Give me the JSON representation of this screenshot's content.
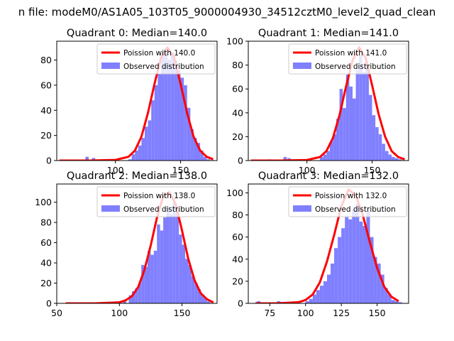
{
  "suptitle": "n file: modeM0/AS1A05_103T05_9000004930_34512cztM0_level2_quad_clean",
  "legend_labels": {
    "line": "Poission with",
    "hist": "Observed distribution"
  },
  "colors": {
    "hist": "#8080ff",
    "line": "#ff0000",
    "axes": "#000000"
  },
  "chart_data": [
    {
      "type": "bar",
      "title": "Quadrant 0: Median=140.0",
      "median": 140.0,
      "poisson_label": "Poission with 140.0",
      "xlim": [
        55,
        178
      ],
      "ylim": [
        0,
        95
      ],
      "xticks": [
        100,
        150
      ],
      "yticks": [
        0,
        20,
        40,
        60,
        80
      ],
      "bin_width": 2.5,
      "hist_x": [
        77,
        82,
        110,
        112.5,
        115,
        117.5,
        120,
        122.5,
        125,
        127.5,
        130,
        132.5,
        135,
        137.5,
        140,
        142.5,
        145,
        147.5,
        150,
        152.5,
        155,
        157.5,
        160,
        162.5,
        165,
        167.5,
        170
      ],
      "hist_y": [
        3,
        2,
        1,
        5,
        8,
        12,
        18,
        27,
        32,
        48,
        60,
        69,
        85,
        89,
        80,
        86,
        80,
        72,
        66,
        60,
        42,
        25,
        18,
        14,
        8,
        3,
        1
      ],
      "poisson_x": [
        57,
        80,
        100,
        110,
        115,
        120,
        125,
        130,
        135,
        140,
        145,
        150,
        155,
        160,
        165,
        170,
        175
      ],
      "poisson_y": [
        0,
        0,
        0.5,
        3,
        8,
        19,
        38,
        61,
        82,
        90,
        82,
        61,
        38,
        19,
        8,
        3,
        1
      ]
    },
    {
      "type": "bar",
      "title": "Quadrant 1: Median=141.0",
      "median": 141.0,
      "poisson_label": "Poission with 141.0",
      "xlim": [
        55,
        178
      ],
      "ylim": [
        0,
        100
      ],
      "xticks": [
        100,
        150
      ],
      "yticks": [
        0,
        20,
        40,
        60,
        80,
        100
      ],
      "bin_width": 2.5,
      "hist_x": [
        70,
        82,
        85,
        110,
        112.5,
        115,
        117.5,
        120,
        122.5,
        125,
        127.5,
        130,
        132.5,
        135,
        137.5,
        140,
        142.5,
        145,
        147.5,
        150,
        152.5,
        155,
        157.5,
        160,
        162.5,
        165,
        167.5,
        170
      ],
      "hist_y": [
        1,
        3,
        2,
        3,
        5,
        8,
        16,
        22,
        35,
        60,
        44,
        72,
        62,
        52,
        76,
        88,
        74,
        80,
        55,
        38,
        28,
        22,
        14,
        8,
        5,
        3,
        2,
        1
      ],
      "poisson_x": [
        57,
        80,
        100,
        110,
        115,
        120,
        125,
        130,
        135,
        140,
        145,
        150,
        155,
        160,
        165,
        170,
        175
      ],
      "poisson_y": [
        0,
        0,
        0.5,
        3,
        8,
        19,
        38,
        62,
        84,
        95,
        86,
        63,
        39,
        20,
        8,
        3,
        1
      ]
    },
    {
      "type": "bar",
      "title": "Quadrant 2: Median=138.0",
      "median": 138.0,
      "poisson_label": "Poission with 138.0",
      "xlim": [
        50,
        178
      ],
      "ylim": [
        0,
        118
      ],
      "xticks": [
        50,
        100,
        150
      ],
      "yticks": [
        0,
        20,
        40,
        60,
        80,
        100
      ],
      "bin_width": 2.5,
      "hist_x": [
        80,
        98,
        103,
        107.5,
        110,
        112.5,
        115,
        117.5,
        120,
        122.5,
        125,
        127.5,
        130,
        132.5,
        135,
        137.5,
        140,
        142.5,
        145,
        147.5,
        150,
        152.5,
        155,
        157.5,
        160,
        162.5,
        165,
        167.5,
        170
      ],
      "hist_y": [
        1,
        2,
        3,
        8,
        12,
        15,
        20,
        38,
        36,
        52,
        48,
        52,
        78,
        72,
        85,
        96,
        88,
        100,
        92,
        68,
        58,
        44,
        38,
        27,
        20,
        14,
        9,
        5,
        2
      ],
      "poisson_x": [
        57,
        80,
        100,
        105,
        110,
        115,
        120,
        125,
        130,
        135,
        140,
        145,
        150,
        155,
        160,
        165,
        170,
        175
      ],
      "poisson_y": [
        0,
        0,
        1,
        3,
        7,
        16,
        33,
        57,
        85,
        106,
        110,
        98,
        72,
        44,
        23,
        10,
        4,
        1
      ]
    },
    {
      "type": "bar",
      "title": "Quadrant 3: Median=132.0",
      "median": 132.0,
      "poisson_label": "Poission with 132.0",
      "xlim": [
        60,
        172
      ],
      "ylim": [
        0,
        108
      ],
      "xticks": [
        75,
        100,
        125,
        150
      ],
      "yticks": [
        0,
        20,
        40,
        60,
        80,
        100
      ],
      "bin_width": 2.5,
      "hist_x": [
        66,
        80,
        90,
        100,
        102.5,
        105,
        107.5,
        110,
        112.5,
        115,
        117.5,
        120,
        122.5,
        125,
        127.5,
        130,
        132.5,
        135,
        137.5,
        140,
        142.5,
        145,
        147.5,
        150,
        152.5,
        155,
        157.5,
        160,
        162.5,
        165
      ],
      "hist_y": [
        2,
        2,
        1,
        2,
        4,
        8,
        12,
        16,
        20,
        26,
        36,
        50,
        60,
        68,
        78,
        76,
        85,
        90,
        74,
        70,
        84,
        60,
        42,
        36,
        26,
        14,
        8,
        3,
        2,
        1
      ],
      "poisson_x": [
        65,
        80,
        95,
        100,
        105,
        110,
        115,
        120,
        125,
        130,
        135,
        140,
        145,
        150,
        155,
        160,
        165
      ],
      "poisson_y": [
        0,
        0,
        1,
        3,
        8,
        19,
        38,
        62,
        88,
        103,
        98,
        80,
        55,
        32,
        15,
        6,
        2
      ]
    }
  ]
}
